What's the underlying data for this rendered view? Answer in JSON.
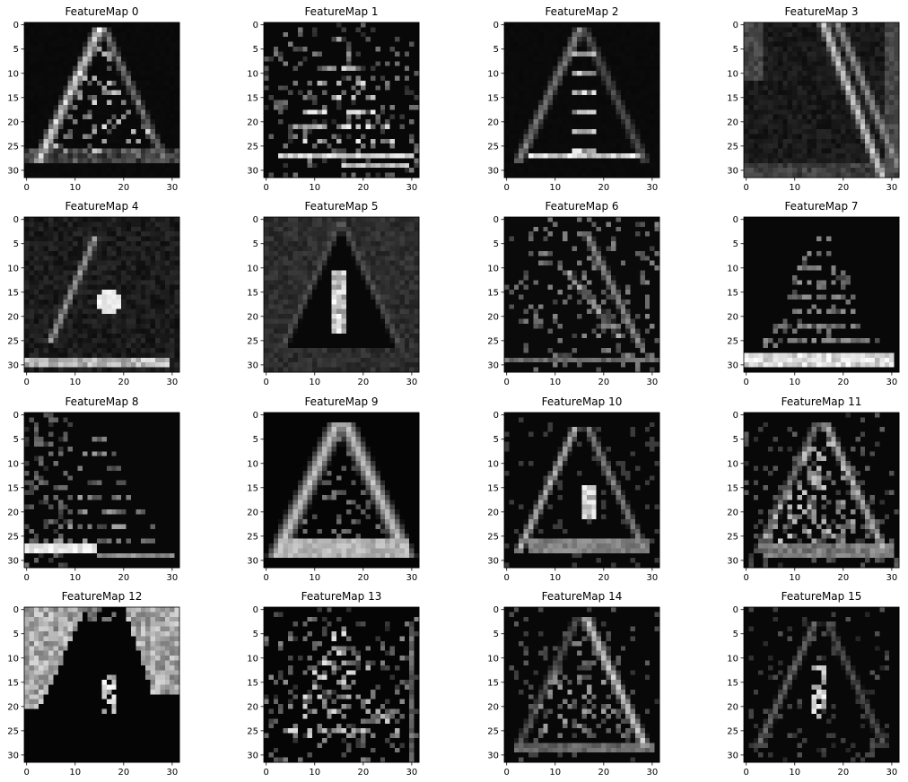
{
  "chart_data": {
    "type": "heatmap",
    "figure_description": "Grid of 16 grayscale feature-map activations (4 rows × 4 columns), each a 32×32 image of a triangular warning sign.",
    "colormap": "gray",
    "grid_rows": 4,
    "grid_cols": 4,
    "image_size": [
      32,
      32
    ],
    "xlim": [
      -0.5,
      31.5
    ],
    "ylim": [
      31.5,
      -0.5
    ],
    "xticks": [
      0,
      10,
      20,
      30
    ],
    "yticks": [
      0,
      5,
      10,
      15,
      20,
      25,
      30
    ],
    "xtick_labels": [
      "0",
      "10",
      "20",
      "30"
    ],
    "ytick_labels": [
      "0",
      "5",
      "10",
      "15",
      "20",
      "25",
      "30"
    ],
    "panels": [
      {
        "title": "FeatureMap 0",
        "pattern": "triangle-left-edge"
      },
      {
        "title": "FeatureMap 1",
        "pattern": "horizontal-stripes"
      },
      {
        "title": "FeatureMap 2",
        "pattern": "triangle-dim-center"
      },
      {
        "title": "FeatureMap 3",
        "pattern": "right-diagonals"
      },
      {
        "title": "FeatureMap 4",
        "pattern": "left-diagonal-center-blob"
      },
      {
        "title": "FeatureMap 5",
        "pattern": "dark-triangle-center-blob"
      },
      {
        "title": "FeatureMap 6",
        "pattern": "right-diagonals-sparse"
      },
      {
        "title": "FeatureMap 7",
        "pattern": "bottom-bar-stripes"
      },
      {
        "title": "FeatureMap 8",
        "pattern": "bottom-bar-stripes-left"
      },
      {
        "title": "FeatureMap 9",
        "pattern": "triangle-bright-outline"
      },
      {
        "title": "FeatureMap 10",
        "pattern": "triangle-outline"
      },
      {
        "title": "FeatureMap 11",
        "pattern": "triangle-outline-textured"
      },
      {
        "title": "FeatureMap 12",
        "pattern": "corner-blobs"
      },
      {
        "title": "FeatureMap 13",
        "pattern": "sparse-dots"
      },
      {
        "title": "FeatureMap 14",
        "pattern": "triangle-right-edge"
      },
      {
        "title": "FeatureMap 15",
        "pattern": "triangle-faint-center"
      }
    ]
  }
}
